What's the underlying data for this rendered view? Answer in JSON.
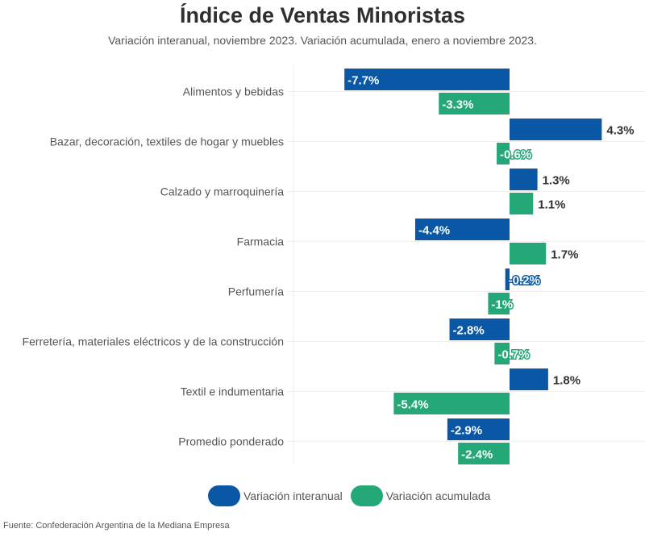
{
  "header": {
    "title": "Índice de Ventas Minoristas",
    "subtitle": "Variación interanual, noviembre 2023. Variación acumulada, enero a noviembre 2023."
  },
  "legend": [
    {
      "label": "Variación interanual",
      "color": "#0a57a6"
    },
    {
      "label": "Variación acumulada",
      "color": "#25a877"
    }
  ],
  "source": "Fuente: Confederación Argentina de la Mediana Empresa",
  "chart_data": {
    "type": "bar",
    "orientation": "horizontal",
    "title": "Índice de Ventas Minoristas",
    "subtitle": "Variación interanual, noviembre 2023. Variación acumulada, enero a noviembre 2023.",
    "xlabel": "",
    "ylabel": "",
    "unit": "%",
    "grid": true,
    "legend_position": "bottom",
    "categories": [
      "Alimentos y bebidas",
      "Bazar, decoración, textiles de hogar y muebles",
      "Calzado y marroquinería",
      "Farmacia",
      "Perfumería",
      "Ferretería, materiales eléctricos y de la construcción",
      "Textil e indumentaria",
      "Promedio ponderado"
    ],
    "series": [
      {
        "name": "Variación interanual",
        "color": "#0a57a6",
        "values": [
          -7.7,
          4.3,
          1.3,
          -4.4,
          -0.2,
          -2.8,
          1.8,
          -2.9
        ],
        "labels": [
          "-7.7%",
          "4.3%",
          "1.3%",
          "-4.4%",
          "-0.2%",
          "-2.8%",
          "1.8%",
          "-2.9%"
        ]
      },
      {
        "name": "Variación acumulada",
        "color": "#25a877",
        "values": [
          -3.3,
          -0.6,
          1.1,
          1.7,
          -1.0,
          -0.7,
          -5.4,
          -2.4
        ],
        "labels": [
          "-3.3%",
          "-0.6%",
          "1.1%",
          "1.7%",
          "-1%",
          "-0.7%",
          "-5.4%",
          "-2.4%"
        ]
      }
    ],
    "xlim": [
      -8,
      6
    ]
  }
}
